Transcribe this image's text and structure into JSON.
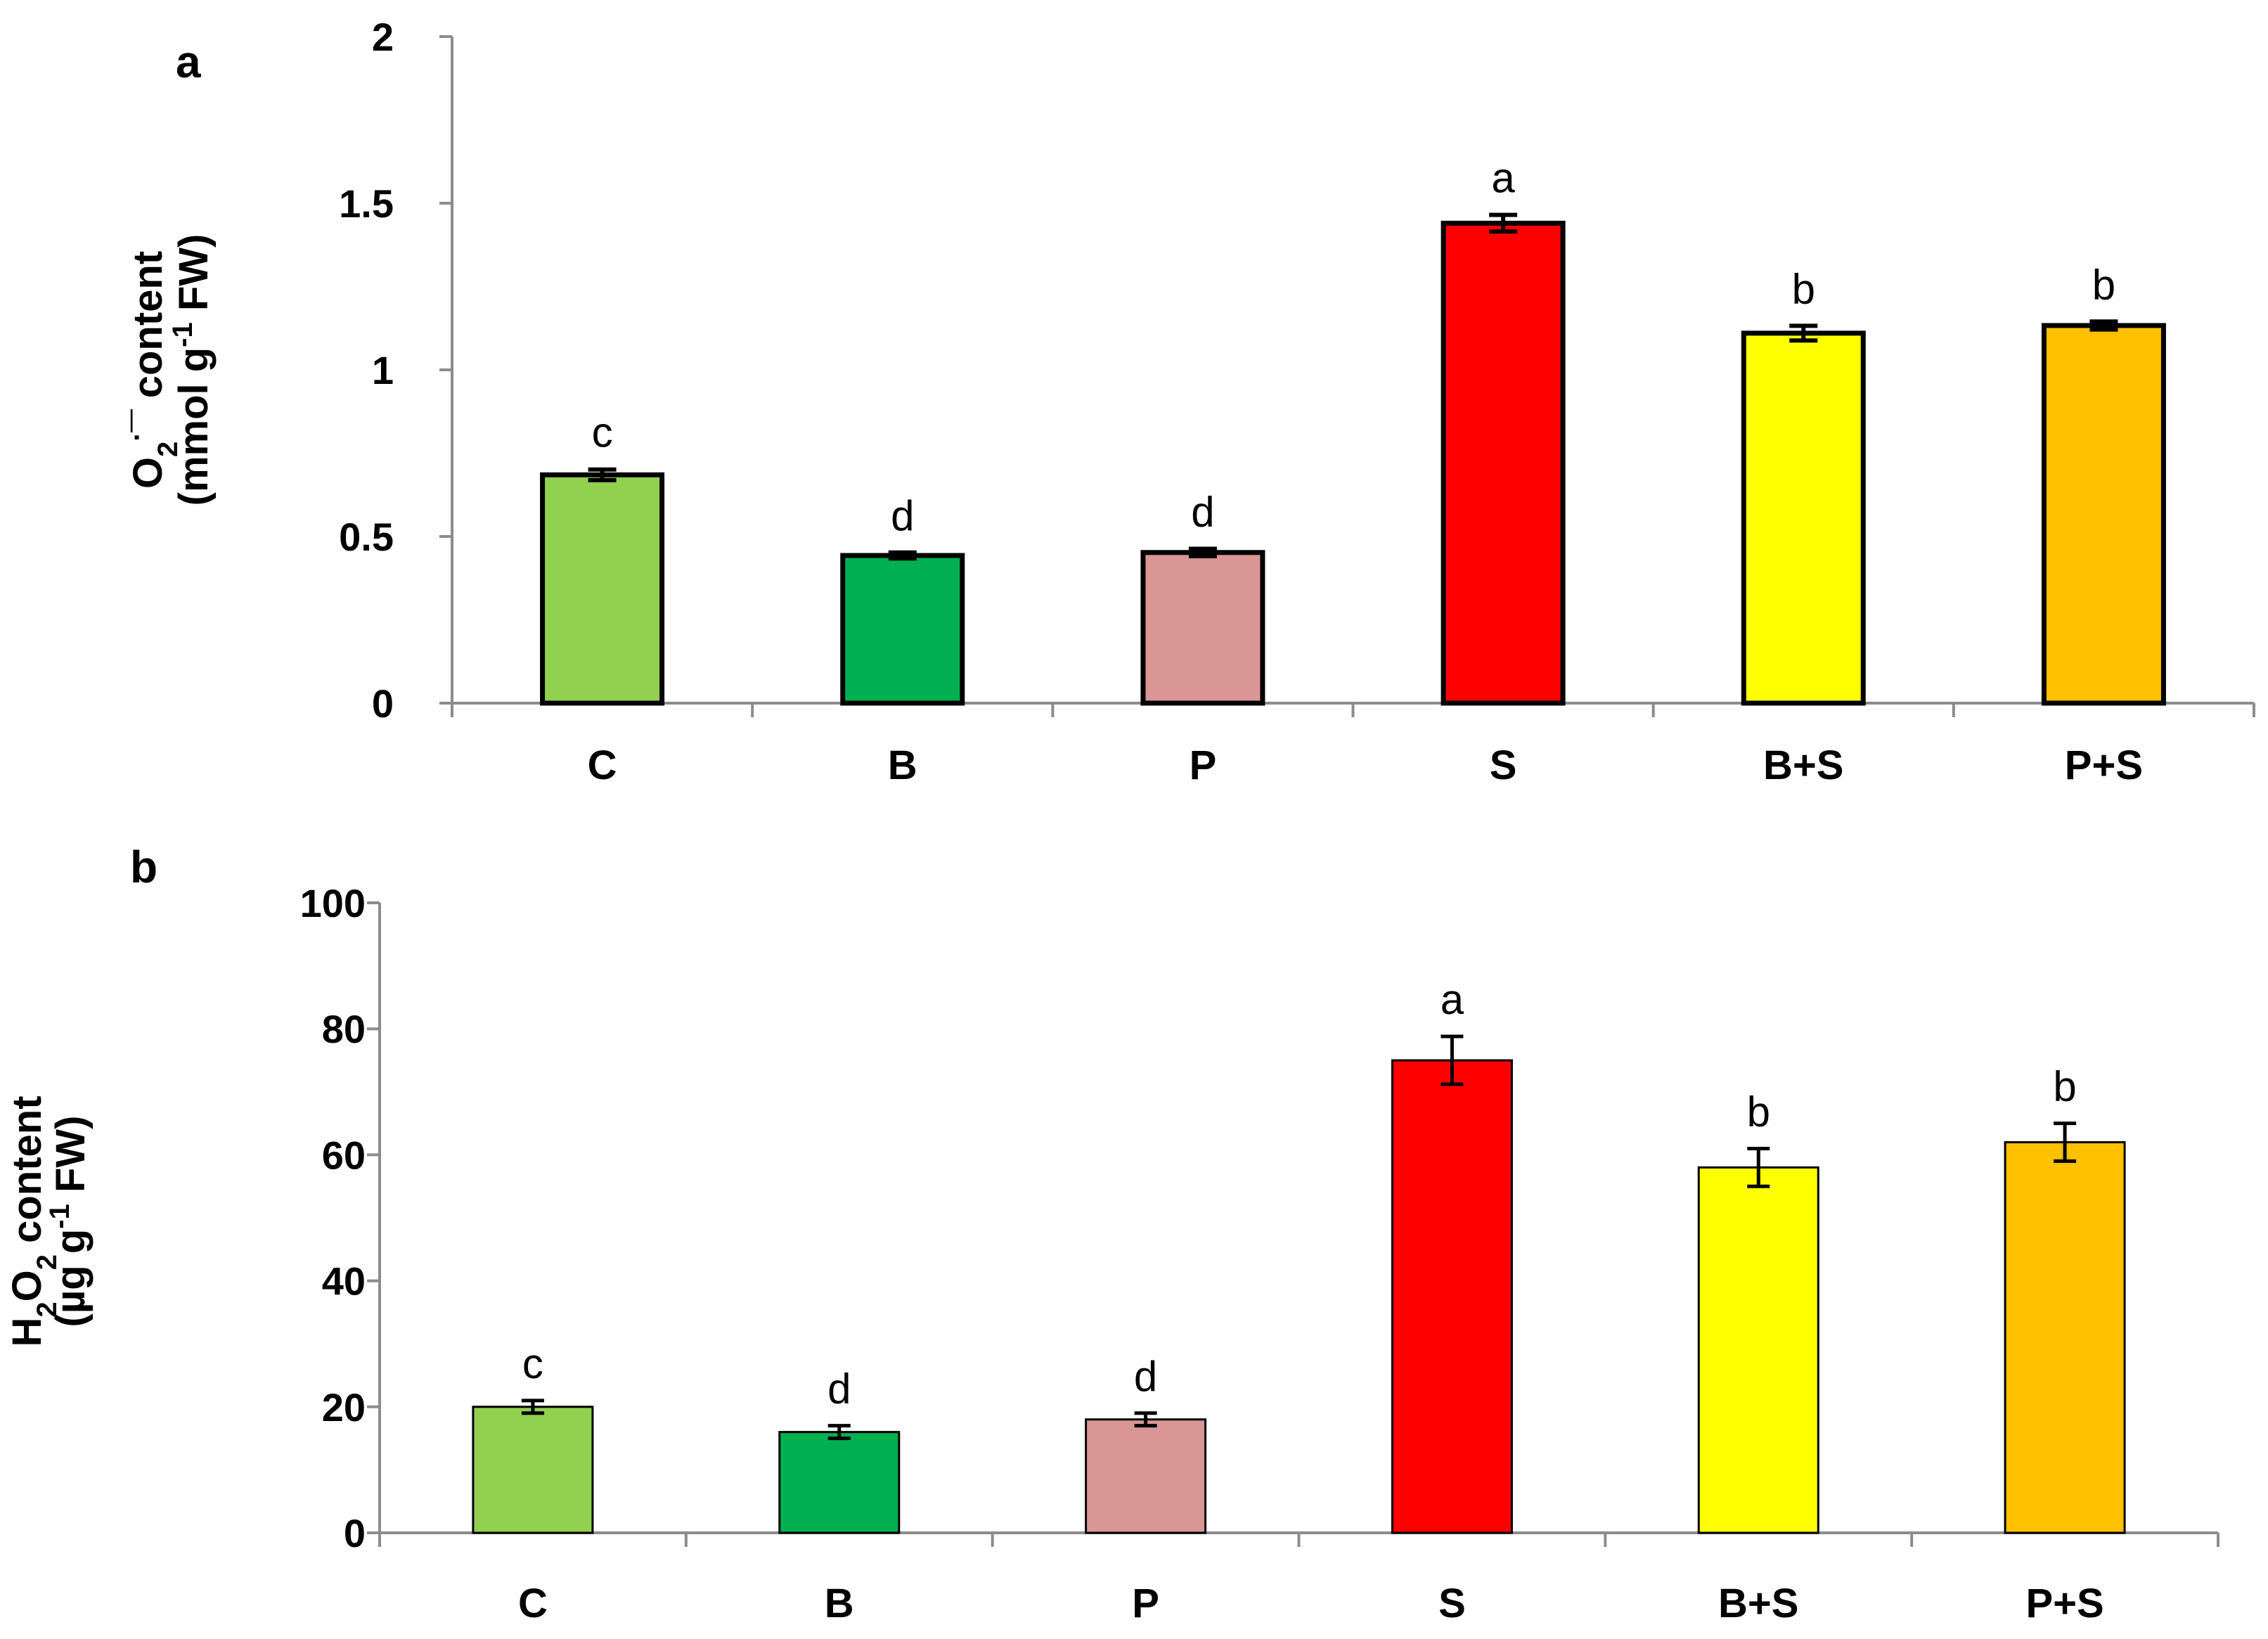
{
  "chart_data": [
    {
      "panel": "a",
      "type": "bar",
      "ylabel_line1": {
        "main": "O",
        "sub": "2",
        "sup": "·",
        "tail": "¯ content"
      },
      "ylabel_line2": {
        "main": "(mmol g",
        "sup": "-1",
        "tail": " FW)"
      },
      "categories": [
        "C",
        "B",
        "P",
        "S",
        "B+S",
        "P+S"
      ],
      "values": [
        0.685,
        0.443,
        0.452,
        1.44,
        1.11,
        1.133
      ],
      "errors": [
        0.016,
        0.009,
        0.011,
        0.025,
        0.022,
        0.012
      ],
      "significance": [
        "c",
        "d",
        "d",
        "a",
        "b",
        "b"
      ],
      "colors": [
        "#92d050",
        "#00b050",
        "#d99694",
        "#ff0000",
        "#ffff00",
        "#ffc000"
      ],
      "ylim": [
        0,
        2
      ],
      "yticks": [
        0,
        0.5,
        1,
        1.5,
        2
      ],
      "ytick_labels": [
        "0",
        "0.5",
        "1",
        "1.5",
        "2"
      ]
    },
    {
      "panel": "b",
      "type": "bar",
      "ylabel_line1": {
        "main": "H",
        "sub": "2",
        "main2": "O",
        "sub2": "2",
        "tail": " content"
      },
      "ylabel_line2": {
        "main": "(µg g",
        "sup": "-1",
        "tail": " FW)"
      },
      "categories": [
        "C",
        "B",
        "P",
        "S",
        "B+S",
        "P+S"
      ],
      "values": [
        20,
        16,
        18,
        75,
        58,
        62
      ],
      "errors": [
        1,
        1,
        1,
        3.8,
        3,
        3
      ],
      "significance": [
        "c",
        "d",
        "d",
        "a",
        "b",
        "b"
      ],
      "colors": [
        "#92d050",
        "#00b050",
        "#d99694",
        "#ff0000",
        "#ffff00",
        "#ffc000"
      ],
      "ylim": [
        0,
        100
      ],
      "yticks": [
        0,
        20,
        40,
        60,
        80,
        100
      ],
      "ytick_labels": [
        "0",
        "20",
        "40",
        "60",
        "80",
        "100"
      ]
    }
  ]
}
